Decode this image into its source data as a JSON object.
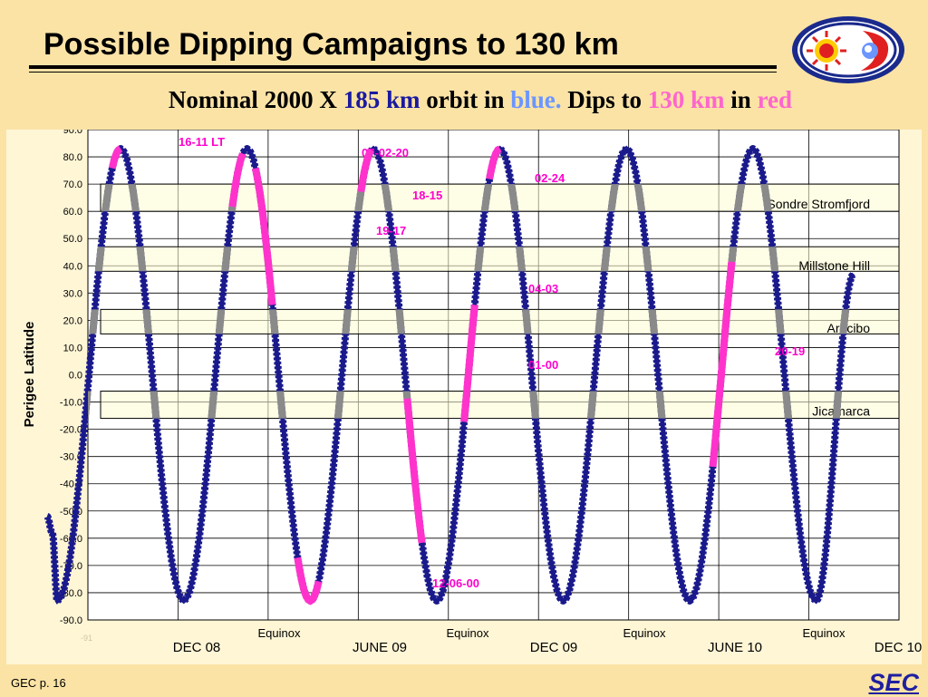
{
  "slide": {
    "title": "Possible Dipping Campaigns to 130 km",
    "subtitle": {
      "part1": "Nominal 2000 X",
      "part2": "185 km",
      "part3": "orbit in",
      "part4": "blue.",
      "part5": "Dips to",
      "part6": "130 km",
      "part7": "in",
      "part8": "red"
    },
    "footer": "GEC p. 16",
    "brand": "SEC"
  },
  "colors": {
    "orbit": "#1a1a8c",
    "dip": "#ff33cc",
    "dip_light": "#ff99dd",
    "station_band": "#fdfbd0",
    "label_magenta": "#ff00cc"
  },
  "chart_data": {
    "type": "line",
    "ylabel": "Perigee Latitude",
    "ylim": [
      -90,
      90
    ],
    "yticks": [
      "90.0",
      "80.0",
      "70.0",
      "60.0",
      "50.0",
      "40.0",
      "30.0",
      "20.0",
      "10.0",
      "0.0",
      "-10.0",
      "-20.0",
      "-30.0",
      "-40.0",
      "-50.0",
      "-60.0",
      "-70.0",
      "-80.0",
      "-90.0"
    ],
    "xticks": [
      "DEC 08",
      "JUNE 09",
      "DEC 09",
      "JUNE 10",
      "DEC 10"
    ],
    "equinox_label": "Equinox",
    "corner_mark": "-91",
    "xlim": [
      0,
      24
    ],
    "orbit_series": {
      "name": "Nominal 2000 X 185 km orbit",
      "extrema": [
        [
          -3.4,
          -52
        ],
        [
          -3.1,
          -58
        ],
        [
          -2.8,
          -83
        ],
        [
          0.9,
          83
        ],
        [
          4.6,
          -83
        ],
        [
          8.3,
          83
        ],
        [
          12.0,
          -83
        ],
        [
          15.7,
          83
        ],
        [
          19.4,
          -83
        ],
        [
          23.1,
          83
        ],
        [
          26.8,
          -83
        ],
        [
          30.5,
          83
        ],
        [
          34.2,
          -83
        ],
        [
          37.9,
          83
        ],
        [
          41.6,
          -83
        ],
        [
          43.8,
          37
        ]
      ]
    },
    "station_bands": [
      {
        "name": "Sondre Stromfjord",
        "ymin": 60,
        "ymax": 70
      },
      {
        "name": "Millstone Hill",
        "ymin": 38,
        "ymax": 47
      },
      {
        "name": "Arecibo",
        "ymin": 15,
        "ymax": 24
      },
      {
        "name": "Jicamarca",
        "ymin": -16,
        "ymax": -6
      }
    ],
    "dips": [
      {
        "label": "16-11 LT",
        "x_range": [
          0.9,
          2.2
        ]
      },
      {
        "label": "07-02-20",
        "x_range": [
          7.6,
          9.0
        ]
      },
      {
        "label": "19-17",
        "x_range": [
          9.0,
          10.7
        ]
      },
      {
        "label": "12-06-00",
        "x_range": [
          11.5,
          12.9
        ]
      },
      {
        "label": "18-15",
        "x_range": [
          14.9,
          15.7
        ]
      },
      {
        "label": "01-00",
        "x_range": [
          16.4,
          17.4
        ]
      },
      {
        "label": "02-24",
        "x_range": [
          22.4,
          23.1
        ]
      },
      {
        "label": "04-03",
        "x_range": [
          20.8,
          21.6
        ]
      },
      {
        "label": "20-19",
        "x_range": [
          35.4,
          36.5
        ]
      }
    ]
  }
}
